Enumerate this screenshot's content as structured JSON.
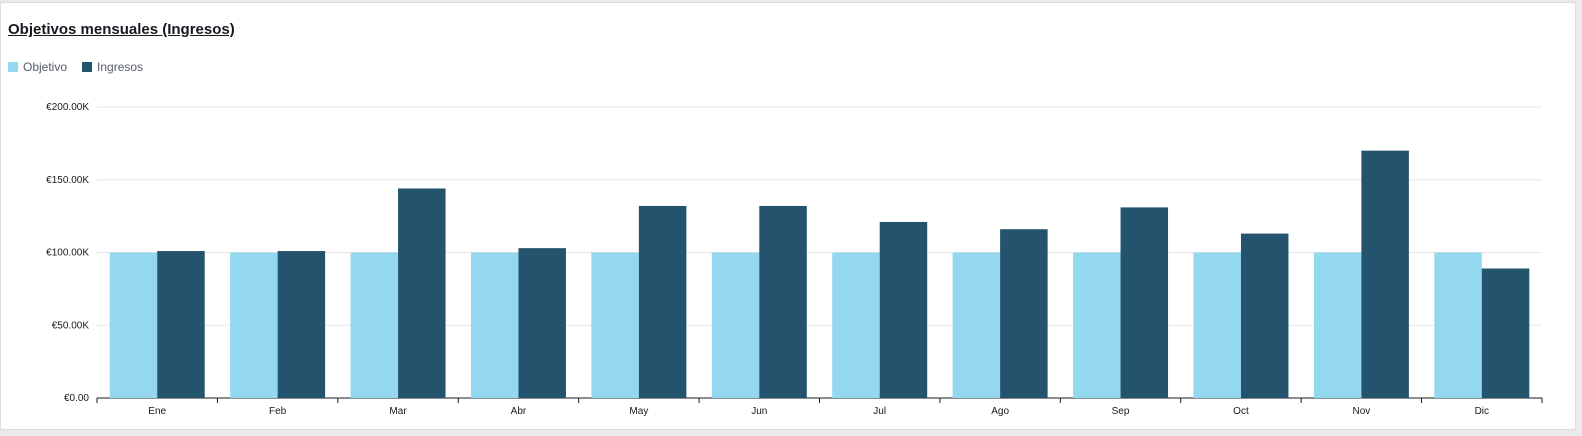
{
  "chart_data": {
    "type": "bar",
    "title": "Objetivos mensuales (Ingresos)",
    "categories": [
      "Ene",
      "Feb",
      "Mar",
      "Abr",
      "May",
      "Jun",
      "Jul",
      "Ago",
      "Sep",
      "Oct",
      "Nov",
      "Dic"
    ],
    "series": [
      {
        "name": "Objetivo",
        "color": "#94d8ef",
        "values": [
          100000,
          100000,
          100000,
          100000,
          100000,
          100000,
          100000,
          100000,
          100000,
          100000,
          100000,
          100000
        ]
      },
      {
        "name": "Ingresos",
        "color": "#24536e",
        "values": [
          101000,
          101000,
          144000,
          103000,
          132000,
          132000,
          121000,
          116000,
          131000,
          113000,
          170000,
          89000
        ]
      }
    ],
    "y_ticks": [
      0,
      50000,
      100000,
      150000,
      200000
    ],
    "y_tick_labels": [
      "€0.00",
      "€50.00K",
      "€100.00K",
      "€150.00K",
      "€200.00K"
    ],
    "ylim": [
      0,
      200000
    ],
    "grid": true,
    "legend": "top-left",
    "xlabel": "",
    "ylabel": ""
  }
}
